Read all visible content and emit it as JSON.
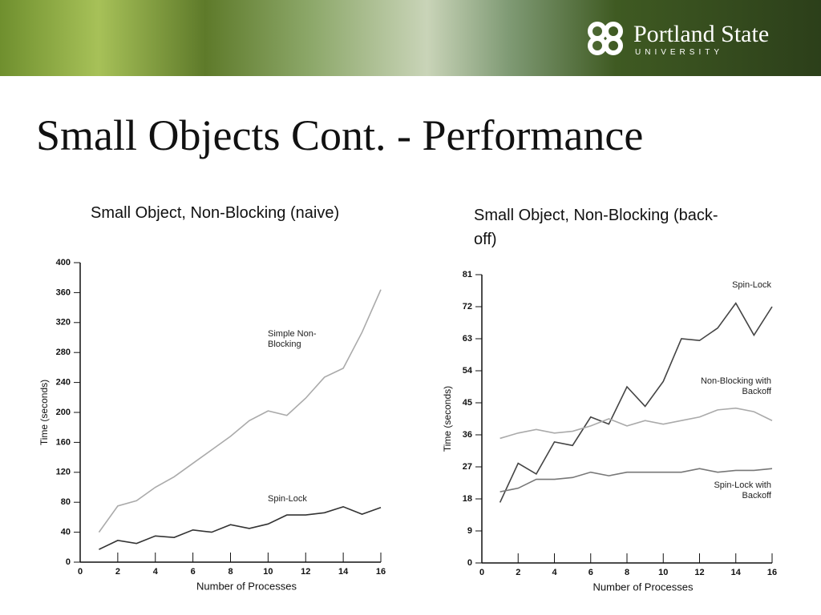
{
  "slide": {
    "logo_name": "Portland State",
    "logo_sub": "UNIVERSITY",
    "title": "Small Objects Cont. - Performance"
  },
  "chart_data": [
    {
      "type": "line",
      "title": "Small Object, Non-Blocking (naive)",
      "xlabel": "Number of Processes",
      "ylabel": "Time (seconds)",
      "x": [
        1,
        2,
        3,
        4,
        5,
        6,
        7,
        8,
        9,
        10,
        11,
        12,
        13,
        14,
        15,
        16
      ],
      "series": [
        {
          "name": "Simple Non-Blocking",
          "color": "#aaaaaa",
          "values": [
            40,
            75,
            82,
            100,
            114,
            132,
            150,
            168,
            189,
            202,
            196,
            219,
            247,
            259,
            307,
            364
          ]
        },
        {
          "name": "Spin-Lock",
          "color": "#333333",
          "values": [
            17,
            29,
            25,
            35,
            33,
            43,
            40,
            50,
            45,
            51,
            63,
            63,
            66,
            74,
            64,
            73
          ]
        }
      ],
      "xlim": [
        0,
        16
      ],
      "xticks": [
        0,
        2,
        4,
        6,
        8,
        10,
        12,
        14,
        16
      ],
      "ylim": [
        0,
        400
      ],
      "yticks": [
        0,
        40,
        80,
        120,
        160,
        200,
        240,
        280,
        320,
        360,
        400
      ]
    },
    {
      "type": "line",
      "title": "Small Object, Non-Blocking (back-off)",
      "xlabel": "Number of Processes",
      "ylabel": "Time (seconds)",
      "x": [
        1,
        2,
        3,
        4,
        5,
        6,
        7,
        8,
        9,
        10,
        11,
        12,
        13,
        14,
        15,
        16
      ],
      "series": [
        {
          "name": "Spin-Lock",
          "color": "#444444",
          "values": [
            17,
            28,
            25,
            34,
            33,
            41,
            39,
            49.5,
            44,
            51,
            63,
            62.5,
            66,
            73,
            64,
            72
          ]
        },
        {
          "name": "Non-Blocking with Backoff",
          "color": "#aaaaaa",
          "values": [
            35,
            36.5,
            37.5,
            36.5,
            37,
            38.5,
            40.5,
            38.5,
            40,
            39,
            40,
            41,
            43,
            43.5,
            42.5,
            40
          ]
        },
        {
          "name": "Spin-Lock with Backoff",
          "color": "#777777",
          "values": [
            20,
            21,
            23.5,
            23.5,
            24,
            25.5,
            24.5,
            25.5,
            25.5,
            25.5,
            25.5,
            26.5,
            25.5,
            26,
            26,
            26.5
          ]
        }
      ],
      "xlim": [
        0,
        16
      ],
      "xticks": [
        0,
        2,
        4,
        6,
        8,
        10,
        12,
        14,
        16
      ],
      "ylim": [
        0,
        81
      ],
      "yticks": [
        0,
        9,
        18,
        27,
        36,
        45,
        54,
        63,
        72,
        81
      ]
    }
  ]
}
